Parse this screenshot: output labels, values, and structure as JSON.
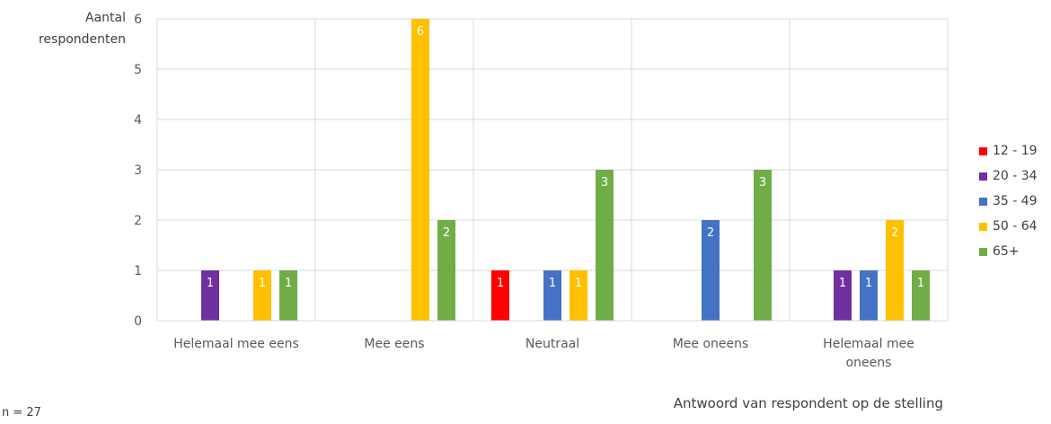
{
  "chart_data": {
    "type": "bar",
    "title": "",
    "ylabel_lines": [
      "Aantal",
      "respondenten"
    ],
    "xlabel": "Antwoord van respondent op de stelling",
    "note": "n = 27",
    "ylim": [
      0,
      6
    ],
    "yticks": [
      "0",
      "1",
      "2",
      "3",
      "4",
      "5",
      "6"
    ],
    "categories": [
      [
        "Helemaal mee eens"
      ],
      [
        "Mee eens"
      ],
      [
        "Neutraal"
      ],
      [
        "Mee oneens"
      ],
      [
        "Helemaal mee",
        "oneens"
      ]
    ],
    "series": [
      {
        "name": "12 - 19",
        "color": "#ff0000",
        "values": [
          0,
          0,
          1,
          0,
          0
        ]
      },
      {
        "name": "20 - 34",
        "color": "#7030a0",
        "values": [
          1,
          0,
          0,
          0,
          1
        ]
      },
      {
        "name": "35 - 49",
        "color": "#4472c4",
        "values": [
          0,
          0,
          1,
          2,
          1
        ]
      },
      {
        "name": "50 - 64",
        "color": "#ffc000",
        "values": [
          1,
          6,
          1,
          0,
          2
        ]
      },
      {
        "name": "65+",
        "color": "#70ad47",
        "values": [
          1,
          2,
          3,
          3,
          1
        ]
      }
    ],
    "grid": true,
    "legend": "right"
  }
}
